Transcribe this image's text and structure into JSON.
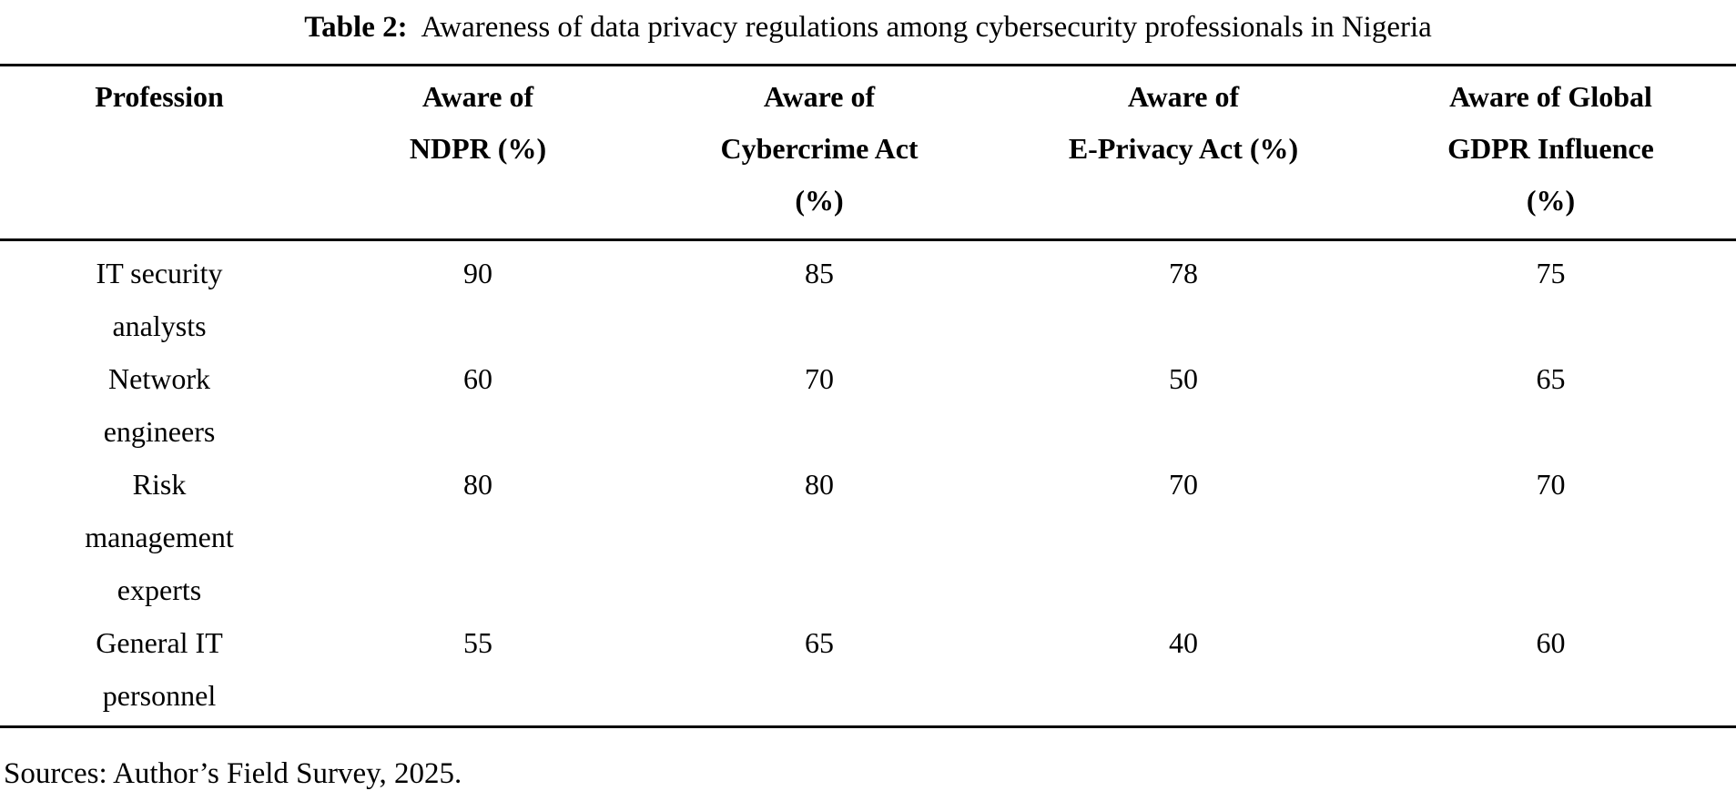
{
  "caption": {
    "label": "Table 2:",
    "text": "Awareness of data privacy regulations among cybersecurity professionals in Nigeria"
  },
  "table": {
    "columns": [
      "Profession",
      "Aware of\nNDPR (%)",
      "Aware of\nCybercrime Act\n(%)",
      "Aware of\nE-Privacy Act (%)",
      "Aware of Global\nGDPR Influence\n(%)"
    ],
    "rows": [
      {
        "profession": "IT security\nanalysts",
        "ndpr": "90",
        "cybercrime": "85",
        "eprivacy": "78",
        "gdpr": "75"
      },
      {
        "profession": "Network\nengineers",
        "ndpr": "60",
        "cybercrime": "70",
        "eprivacy": "50",
        "gdpr": "65"
      },
      {
        "profession": "Risk\nmanagement\nexperts",
        "ndpr": "80",
        "cybercrime": "80",
        "eprivacy": "70",
        "gdpr": "70"
      },
      {
        "profession": "General IT\npersonnel",
        "ndpr": "55",
        "cybercrime": "65",
        "eprivacy": "40",
        "gdpr": "60"
      }
    ]
  },
  "footer": {
    "source": "Sources: Author’s Field Survey, 2025."
  }
}
